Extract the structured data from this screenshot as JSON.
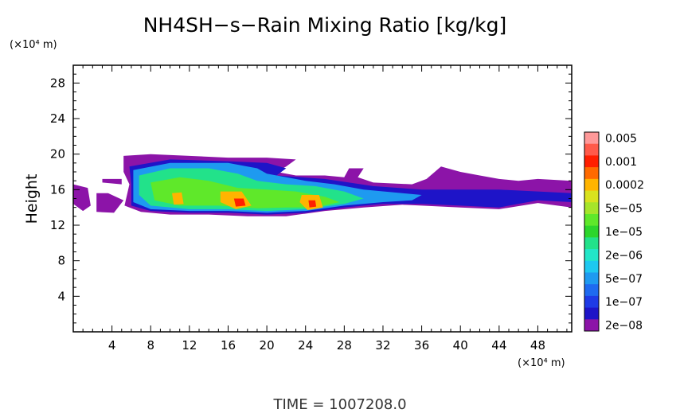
{
  "chart_data": {
    "type": "heatmap",
    "title": "NH4SH−s−Rain Mixing Ratio [kg/kg]",
    "ylabel": "Height",
    "y_unit": "(×10⁴ m)",
    "x_unit": "(×10⁴ m)",
    "xlim": [
      0,
      51.5
    ],
    "ylim": [
      0,
      30
    ],
    "x_ticks": [
      4,
      8,
      12,
      16,
      20,
      24,
      28,
      32,
      36,
      40,
      44,
      48
    ],
    "y_ticks": [
      4,
      8,
      12,
      16,
      20,
      24,
      28
    ],
    "grid": false,
    "footer": "TIME  =  1007208.0",
    "colorbar": {
      "labels": [
        "0.005",
        "0.001",
        "0.0002",
        "5e−05",
        "1e−05",
        "2e−06",
        "5e−07",
        "1e−07",
        "2e−08"
      ],
      "levels_desc": [
        {
          "label": "0.005",
          "color": "#ff9999"
        },
        {
          "color": "#ff5a4a"
        },
        {
          "label": "0.001",
          "color": "#ff1e00"
        },
        {
          "color": "#ff6a00"
        },
        {
          "label": "0.0002",
          "color": "#ffb400"
        },
        {
          "color": "#d9e21e"
        },
        {
          "label": "5e−05",
          "color": "#a6e52a"
        },
        {
          "color": "#5fe82a"
        },
        {
          "label": "1e−05",
          "color": "#2cd62c"
        },
        {
          "color": "#22e28a"
        },
        {
          "label": "2e−06",
          "color": "#22e6c8"
        },
        {
          "color": "#1ec8f0"
        },
        {
          "label": "5e−07",
          "color": "#1e9af0"
        },
        {
          "color": "#1e6af0"
        },
        {
          "label": "1e−07",
          "color": "#1e3ae6"
        },
        {
          "color": "#1e14c8"
        },
        {
          "label": "2e−08",
          "color": "#8c14a8"
        }
      ]
    },
    "regions": [
      {
        "name": "outer-envelope",
        "level": 16,
        "points": [
          [
            0,
            16.6
          ],
          [
            1.5,
            16.2
          ],
          [
            1.8,
            14.2
          ],
          [
            1,
            13.6
          ],
          [
            0,
            14.4
          ]
        ]
      },
      {
        "name": "outer-envelope",
        "level": 16,
        "points": [
          [
            2.4,
            15.6
          ],
          [
            3.6,
            15.6
          ],
          [
            5.2,
            14.8
          ],
          [
            4.2,
            13.4
          ],
          [
            2.4,
            13.5
          ]
        ]
      },
      {
        "name": "outer-envelope",
        "level": 16,
        "points": [
          [
            3,
            17.2
          ],
          [
            5,
            17.2
          ],
          [
            5,
            16.6
          ],
          [
            3,
            16.8
          ]
        ]
      },
      {
        "name": "outer-envelope",
        "level": 16,
        "points": [
          [
            5.2,
            19.8
          ],
          [
            8,
            20
          ],
          [
            12,
            19.8
          ],
          [
            16,
            19.6
          ],
          [
            20,
            19.6
          ],
          [
            23,
            19.4
          ],
          [
            22,
            18.6
          ],
          [
            21,
            18.0
          ],
          [
            23,
            17.6
          ],
          [
            26,
            17.6
          ],
          [
            28,
            17.4
          ],
          [
            28.5,
            18.4
          ],
          [
            30,
            18.4
          ],
          [
            29.4,
            17.4
          ],
          [
            31,
            16.8
          ],
          [
            35,
            16.6
          ],
          [
            36.5,
            17.2
          ],
          [
            38,
            18.6
          ],
          [
            40,
            18.0
          ],
          [
            42,
            17.6
          ],
          [
            44,
            17.2
          ],
          [
            46,
            17.0
          ],
          [
            48,
            17.2
          ],
          [
            51.5,
            17.0
          ],
          [
            51.5,
            14.0
          ],
          [
            48,
            14.5
          ],
          [
            44,
            13.8
          ],
          [
            40,
            14.0
          ],
          [
            36,
            14.2
          ],
          [
            34,
            14.3
          ],
          [
            30,
            14.0
          ],
          [
            26,
            13.6
          ],
          [
            22,
            13.0
          ],
          [
            18,
            13.0
          ],
          [
            14,
            13.2
          ],
          [
            10,
            13.2
          ],
          [
            7,
            13.5
          ],
          [
            5.3,
            14.2
          ],
          [
            5.8,
            16.6
          ],
          [
            5.2,
            18.0
          ]
        ]
      },
      {
        "name": "low-level-pocket",
        "level": 15,
        "points": [
          [
            5.8,
            18.6
          ],
          [
            10,
            19.4
          ],
          [
            16,
            19.2
          ],
          [
            20,
            19.0
          ],
          [
            22,
            18.4
          ],
          [
            21,
            17.6
          ],
          [
            26,
            17.2
          ],
          [
            31,
            16.4
          ],
          [
            36,
            16.0
          ],
          [
            40,
            16.0
          ],
          [
            44,
            16.0
          ],
          [
            48,
            15.8
          ],
          [
            51.5,
            15.6
          ],
          [
            51.5,
            14.6
          ],
          [
            48,
            14.8
          ],
          [
            44,
            14.0
          ],
          [
            40,
            14.2
          ],
          [
            36,
            14.4
          ],
          [
            32,
            14.4
          ],
          [
            28,
            14.0
          ],
          [
            24,
            13.4
          ],
          [
            20,
            13.2
          ],
          [
            16,
            13.4
          ],
          [
            12,
            13.4
          ],
          [
            8,
            13.6
          ],
          [
            6,
            14.2
          ],
          [
            6,
            16.6
          ]
        ]
      },
      {
        "name": "mid-pocket",
        "level": 12,
        "points": [
          [
            6.2,
            18.2
          ],
          [
            10,
            19.0
          ],
          [
            16,
            19.0
          ],
          [
            19,
            18.4
          ],
          [
            20,
            17.8
          ],
          [
            24,
            17.0
          ],
          [
            27,
            16.6
          ],
          [
            30,
            16.0
          ],
          [
            34,
            15.6
          ],
          [
            36,
            15.4
          ],
          [
            35,
            14.8
          ],
          [
            32,
            14.6
          ],
          [
            28,
            14.2
          ],
          [
            24,
            13.6
          ],
          [
            20,
            13.4
          ],
          [
            16,
            13.6
          ],
          [
            12,
            13.6
          ],
          [
            8,
            13.8
          ],
          [
            6.2,
            14.6
          ],
          [
            6.2,
            16.8
          ]
        ]
      },
      {
        "name": "core",
        "level": 9,
        "points": [
          [
            6.8,
            17.6
          ],
          [
            10,
            18.4
          ],
          [
            14,
            18.4
          ],
          [
            17,
            17.8
          ],
          [
            19,
            17.0
          ],
          [
            22,
            16.6
          ],
          [
            25,
            16.4
          ],
          [
            28,
            15.8
          ],
          [
            30,
            15.0
          ],
          [
            28,
            14.4
          ],
          [
            24,
            13.8
          ],
          [
            20,
            13.6
          ],
          [
            16,
            13.8
          ],
          [
            12,
            13.8
          ],
          [
            8,
            14.2
          ],
          [
            6.8,
            15.4
          ]
        ]
      },
      {
        "name": "inner-core",
        "level": 7,
        "points": [
          [
            8,
            16.8
          ],
          [
            11,
            17.4
          ],
          [
            14,
            17.0
          ],
          [
            17,
            16.2
          ],
          [
            20,
            16.0
          ],
          [
            23,
            15.8
          ],
          [
            26,
            15.2
          ],
          [
            27.5,
            14.6
          ],
          [
            25,
            14.0
          ],
          [
            22,
            14.0
          ],
          [
            19,
            13.9
          ],
          [
            15,
            14.2
          ],
          [
            11,
            14.2
          ],
          [
            8.4,
            14.8
          ]
        ]
      },
      {
        "name": "warm-blob",
        "level": 4,
        "points": [
          [
            10.2,
            15.6
          ],
          [
            11.2,
            15.7
          ],
          [
            11.4,
            14.4
          ],
          [
            10.4,
            14.3
          ]
        ]
      },
      {
        "name": "warm-blob",
        "level": 4,
        "points": [
          [
            15.2,
            15.8
          ],
          [
            17.4,
            15.8
          ],
          [
            18.4,
            14.2
          ],
          [
            16.8,
            13.8
          ],
          [
            15.2,
            14.6
          ]
        ]
      },
      {
        "name": "warm-blob",
        "level": 4,
        "points": [
          [
            23.6,
            15.4
          ],
          [
            25.4,
            15.4
          ],
          [
            25.8,
            14.0
          ],
          [
            24.2,
            13.7
          ],
          [
            23.4,
            14.6
          ]
        ]
      },
      {
        "name": "hot-spot",
        "level": 2,
        "points": [
          [
            16.6,
            15.0
          ],
          [
            17.6,
            15.0
          ],
          [
            17.8,
            14.2
          ],
          [
            16.8,
            14.1
          ]
        ]
      },
      {
        "name": "hot-spot",
        "level": 2,
        "points": [
          [
            24.3,
            14.8
          ],
          [
            25.0,
            14.8
          ],
          [
            25.1,
            14.1
          ],
          [
            24.4,
            14.0
          ]
        ]
      }
    ]
  }
}
